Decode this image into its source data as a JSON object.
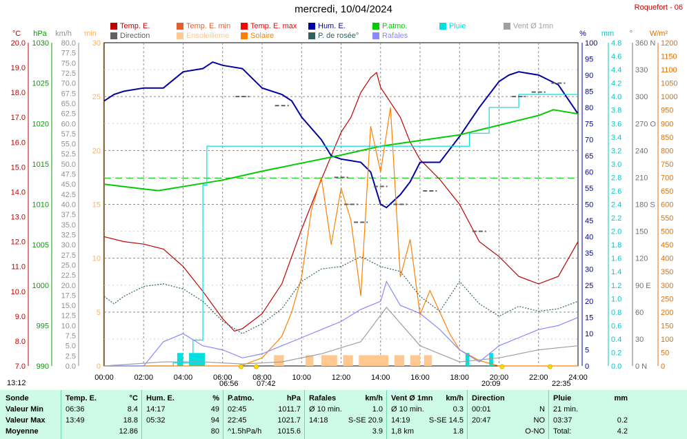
{
  "title": "mercredi, 10/04/2024",
  "station": "Roquefort - 06",
  "units": {
    "temp": "°C",
    "hpa": "hPa",
    "kmh": "km/h",
    "min": "min",
    "pct": "%",
    "mm": "mm",
    "deg": "°",
    "wm2": "W/m²"
  },
  "legend": [
    {
      "label": "Temp. E.",
      "color": "#c00000"
    },
    {
      "label": "Temp. E. min",
      "color": "#e06030"
    },
    {
      "label": "Temp. E. max",
      "color": "#ff0000"
    },
    {
      "label": "Hum. E.",
      "color": "#0000a0"
    },
    {
      "label": "P.atmo.",
      "color": "#00cc00"
    },
    {
      "label": "Pluie",
      "color": "#00e0e0"
    },
    {
      "label": "Vent Ø 1mn",
      "color": "#a0a0a0"
    },
    {
      "label": "Direction",
      "color": "#606060"
    },
    {
      "label": "Ensoleilleme",
      "color": "#ffc890"
    },
    {
      "label": "Solaire",
      "color": "#ff8000"
    },
    {
      "label": "P. de rosée°",
      "color": "#306060"
    },
    {
      "label": "Rafales",
      "color": "#8888ff"
    }
  ],
  "footer_times": {
    "sunrise_left": "13:12",
    "dawn": "06:56",
    "sunrise": "07:42",
    "sunset": "20:09",
    "dusk": "22:35"
  },
  "summary": {
    "row_labels": [
      "Sonde",
      "Valeur Min",
      "Valeur Max",
      "Moyenne"
    ],
    "columns": [
      {
        "name": "Temp. E.",
        "unit": "°C",
        "rows": [
          [
            "06:36",
            "8.4"
          ],
          [
            "13:49",
            "18.8"
          ],
          [
            "",
            "12.86"
          ]
        ]
      },
      {
        "name": "Hum. E.",
        "unit": "%",
        "rows": [
          [
            "14:17",
            "49"
          ],
          [
            "05:32",
            "94"
          ],
          [
            "",
            "80"
          ]
        ]
      },
      {
        "name": "P.atmo.",
        "unit": "hPa",
        "rows": [
          [
            "02:45",
            "1011.7"
          ],
          [
            "22:45",
            "1021.7"
          ],
          [
            "^1.5hPa/h",
            "1015.6"
          ]
        ]
      },
      {
        "name": "Rafales",
        "unit": "km/h",
        "rows": [
          [
            "Ø 10 min.",
            "1.0"
          ],
          [
            "14:18",
            "S-SE 20.9"
          ],
          [
            "",
            "3.9"
          ]
        ]
      },
      {
        "name": "Vent Ø 1mn",
        "unit": "km/h",
        "rows": [
          [
            "Ø 10 min.",
            "0.3"
          ],
          [
            "14:19",
            "S-SE 14.5"
          ],
          [
            "1,8 km",
            "1.8"
          ]
        ]
      },
      {
        "name": "Direction",
        "unit": "",
        "rows": [
          [
            "00:01",
            "N"
          ],
          [
            "20:47",
            "NO"
          ],
          [
            "",
            "O-NO"
          ]
        ]
      },
      {
        "name": "Pluie",
        "unit": "mm",
        "rows": [
          [
            "21 min.",
            ""
          ],
          [
            "03:37",
            "0.2"
          ],
          [
            "Total:",
            "4.2"
          ]
        ]
      }
    ]
  },
  "chart_data": {
    "type": "line",
    "x_axis": {
      "range": [
        "00:00",
        "24:00"
      ],
      "ticks": [
        "00:00",
        "02:00",
        "04:00",
        "06:00",
        "08:00",
        "10:00",
        "12:00",
        "14:00",
        "16:00",
        "18:00",
        "20:00",
        "22:00",
        "24:00"
      ]
    },
    "y_axes": {
      "temp_c": {
        "range": [
          7,
          20
        ],
        "ticks": [
          "7.0",
          "8.0",
          "9.0",
          "10.0",
          "11.0",
          "12.0",
          "13.0",
          "14.0",
          "15.0",
          "16.0",
          "17.0",
          "18.0",
          "19.0",
          "20.0"
        ]
      },
      "pressure_hpa": {
        "range": [
          990,
          1030
        ],
        "ticks": [
          "990",
          "995",
          "1000",
          "1005",
          "1010",
          "1015",
          "1020",
          "1025",
          "1030"
        ]
      },
      "wind_kmh": {
        "range": [
          0,
          80
        ],
        "ticks": [
          "0.0",
          "2.5",
          "5.0",
          "7.5",
          "10.0",
          "12.5",
          "15.0",
          "17.5",
          "20.0",
          "22.5",
          "25.0",
          "27.5",
          "30.0",
          "32.5",
          "35.0",
          "37.5",
          "40.0",
          "42.5",
          "45.0",
          "47.5",
          "50.0",
          "52.5",
          "55.0",
          "57.5",
          "60.0",
          "62.5",
          "65.0",
          "67.5",
          "70.0",
          "72.5",
          "75.0",
          "77.5",
          "80.0"
        ]
      },
      "sunshine_min": {
        "range": [
          0,
          30
        ],
        "ticks": [
          "0",
          "5",
          "10",
          "15",
          "20",
          "25",
          "30"
        ]
      },
      "humidity_pct": {
        "range": [
          0,
          100
        ],
        "ticks": [
          "0",
          "5",
          "10",
          "15",
          "20",
          "25",
          "30",
          "35",
          "40",
          "45",
          "50",
          "55",
          "60",
          "65",
          "70",
          "75",
          "80",
          "85",
          "90",
          "95",
          "100"
        ]
      },
      "rain_mm": {
        "range": [
          0,
          5.0
        ],
        "ticks": [
          "0.0",
          "0.2",
          "0.4",
          "0.6",
          "0.8",
          "1.0",
          "1.2",
          "1.4",
          "1.6",
          "1.8",
          "2.0",
          "2.2",
          "2.4",
          "2.6",
          "2.8",
          "3.0",
          "3.2",
          "3.4",
          "3.6",
          "3.8",
          "4.0",
          "4.2",
          "4.4",
          "4.6",
          "4.8"
        ]
      },
      "direction_deg": {
        "range": [
          0,
          360
        ],
        "ticks": [
          "0 N",
          "30",
          "60",
          "90 E",
          "120",
          "150",
          "180 S",
          "210",
          "240",
          "270 O",
          "300",
          "330",
          "360 N"
        ]
      },
      "solar_wm2": {
        "range": [
          0,
          1200
        ],
        "ticks": [
          "0",
          "50",
          "100",
          "150",
          "200",
          "250",
          "300",
          "350",
          "400",
          "450",
          "500",
          "550",
          "600",
          "650",
          "700",
          "750",
          "800",
          "850",
          "900",
          "950",
          "1000",
          "1050",
          "1100",
          "1150",
          "1200"
        ]
      }
    },
    "series": [
      {
        "name": "Temp. E.",
        "axis": "temp_c",
        "color": "#c00000",
        "x": [
          0,
          1,
          2,
          3,
          4,
          5,
          6,
          6.6,
          7,
          8,
          9,
          10,
          11,
          12,
          12.5,
          13,
          13.5,
          13.8,
          14,
          15,
          15.5,
          16,
          17,
          18,
          19,
          20,
          21,
          22,
          23,
          24
        ],
        "y": [
          12.2,
          12.0,
          11.9,
          11.7,
          11.0,
          10.0,
          8.9,
          8.4,
          8.5,
          9.1,
          10.3,
          12.5,
          14.5,
          16.4,
          17.0,
          18.0,
          18.6,
          18.8,
          18.2,
          17.0,
          16.0,
          15.3,
          14.5,
          13.5,
          12.0,
          11.4,
          10.6,
          10.3,
          10.6,
          12.0
        ]
      },
      {
        "name": "Hum. E.",
        "axis": "humidity_pct",
        "color": "#0000a0",
        "x": [
          0,
          0.5,
          1,
          2,
          3,
          4,
          5,
          5.5,
          6,
          7,
          8,
          9,
          9.5,
          10,
          11,
          11.5,
          12,
          13,
          13.5,
          14,
          14.3,
          15,
          15.5,
          16,
          17,
          17.5,
          18,
          19,
          20,
          20.5,
          21,
          22,
          23,
          24
        ],
        "y": [
          82,
          84,
          85,
          86,
          86,
          91,
          92,
          94,
          93,
          92,
          86,
          84,
          82,
          77,
          70,
          65,
          64,
          63,
          60,
          50,
          49,
          53,
          57,
          63,
          63,
          67,
          71,
          80,
          88,
          90,
          91,
          90,
          87,
          78
        ]
      },
      {
        "name": "P.atmo.",
        "axis": "pressure_hpa",
        "color": "#00cc00",
        "x": [
          0,
          2,
          2.75,
          4,
          6,
          8,
          10,
          12,
          14,
          16,
          18,
          20,
          22,
          22.75,
          24
        ],
        "y": [
          1012.5,
          1011.9,
          1011.7,
          1012.2,
          1013.0,
          1014.1,
          1015.1,
          1016.1,
          1017.2,
          1017.9,
          1018.6,
          1019.8,
          1021.0,
          1021.7,
          1021.2
        ]
      },
      {
        "name": "Pluie",
        "axis": "rain_mm",
        "color": "#00e0e0",
        "x": [
          0,
          3.5,
          4.5,
          5,
          5.2,
          6,
          13,
          16,
          17,
          18.5,
          19.5,
          21,
          22,
          24
        ],
        "y": [
          0,
          0.05,
          0.4,
          2.8,
          3.4,
          3.4,
          3.4,
          3.4,
          3.4,
          3.6,
          4.0,
          4.2,
          4.2,
          4.2
        ]
      },
      {
        "name": "Solaire",
        "axis": "solar_wm2",
        "color": "#ff8000",
        "x": [
          0,
          6.9,
          8,
          9,
          9.5,
          10,
          10.5,
          11,
          11.5,
          12,
          12.5,
          13,
          13.5,
          14,
          14.5,
          15,
          15.5,
          16,
          16.5,
          17,
          17.5,
          18,
          19,
          20,
          24
        ],
        "y": [
          0,
          0,
          30,
          110,
          200,
          330,
          580,
          700,
          450,
          660,
          540,
          260,
          890,
          720,
          960,
          330,
          470,
          190,
          280,
          200,
          120,
          60,
          20,
          0,
          0
        ]
      },
      {
        "name": "Rafales",
        "axis": "wind_kmh",
        "color": "#8888ff",
        "x": [
          0,
          2,
          3,
          4,
          5,
          6,
          7,
          8,
          9,
          10,
          11,
          12,
          13,
          14,
          14.3,
          15,
          16,
          17,
          18,
          19,
          20,
          21,
          22,
          23,
          24
        ],
        "y": [
          0,
          0,
          6,
          8,
          5,
          4,
          2,
          3,
          5,
          7,
          9,
          11,
          14,
          16,
          20.9,
          15,
          13,
          9,
          4,
          1,
          5,
          7,
          9,
          10,
          12
        ]
      },
      {
        "name": "Vent Ø 1mn",
        "axis": "wind_kmh",
        "color": "#a0a0a0",
        "x": [
          0,
          3,
          5,
          7,
          9,
          11,
          13,
          14.3,
          16,
          18,
          20,
          22,
          24
        ],
        "y": [
          0,
          1,
          1,
          0.5,
          1,
          3,
          6,
          14.5,
          5,
          1,
          2,
          4,
          5
        ]
      },
      {
        "name": "P. de rosée°",
        "axis": "temp_c",
        "color": "#306060",
        "x": [
          0,
          0.5,
          1,
          2,
          3,
          4,
          5,
          6,
          7,
          8,
          9,
          10,
          11,
          12,
          13,
          14,
          15,
          16,
          17,
          18,
          19,
          20,
          21,
          22,
          23,
          24
        ],
        "y": [
          9.8,
          9.5,
          9.8,
          10.2,
          10.3,
          10.1,
          9.6,
          8.8,
          8.3,
          8.7,
          9.3,
          10.4,
          10.9,
          11.0,
          11.4,
          11.0,
          10.8,
          9.8,
          9.2,
          10.4,
          9.5,
          9.0,
          9.4,
          9.2,
          9.3,
          9.6
        ]
      },
      {
        "name": "Direction",
        "axis": "direction_deg",
        "color": "#606060",
        "x": [
          7,
          9,
          12,
          12.5,
          13,
          14,
          15,
          16.5,
          19,
          21,
          22,
          23
        ],
        "y": [
          300,
          290,
          210,
          180,
          160,
          200,
          180,
          195,
          150,
          300,
          305,
          315
        ]
      }
    ]
  }
}
